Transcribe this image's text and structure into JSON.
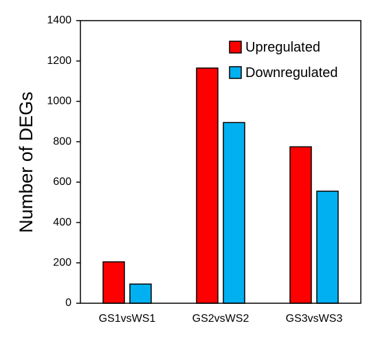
{
  "chart_data": {
    "type": "bar",
    "title": "",
    "xlabel": "",
    "ylabel": "Number of DEGs",
    "categories": [
      "GS1vsWS1",
      "GS2vsWS2",
      "GS3vsWS3"
    ],
    "series": [
      {
        "name": "Upregulated",
        "values": [
          205,
          1165,
          775
        ],
        "color": "#ff0000"
      },
      {
        "name": "Downregulated",
        "values": [
          95,
          895,
          555
        ],
        "color": "#00b0f0"
      }
    ],
    "ylim": [
      0,
      1400
    ],
    "yticks": [
      "0",
      "200",
      "400",
      "600",
      "800",
      "1000",
      "1200",
      "1400"
    ],
    "grid": false,
    "legend_position": "top-right"
  }
}
